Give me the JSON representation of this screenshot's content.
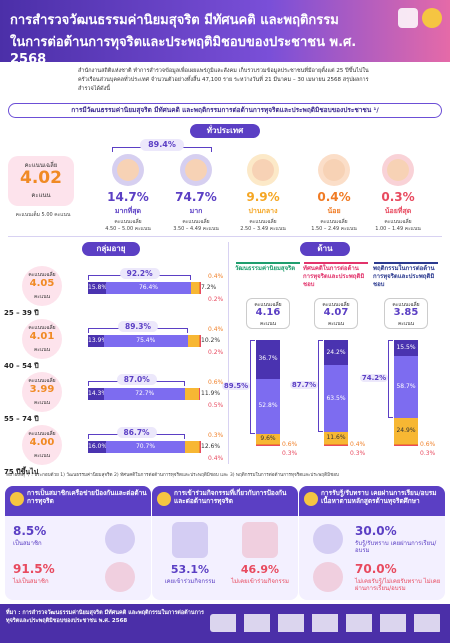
{
  "header": {
    "title_line1": "การสำรวจวัฒนธรรมค่านิยมสุจริต มีทัศนคติ และพฤติกรรม",
    "title_line2": "ในการต่อต้านการทุจริตและประพฤติมิชอบของประชาชน พ.ศ. 2568"
  },
  "intro": "สำนักงานสถิติแห่งชาติ ทำการสำรวจข้อมูลเพื่อเผยแพร่ภูมิและสังคม เก็บรวบรวมข้อมูลประชาชนที่มีอายุตั้งแต่ 25 ปีขึ้นไปในครัวเรือนส่วนบุคคลทั่วประเทศ จำนวนตัวอย่างทั้งสิ้น 47,100 ราย ระหว่างวันที่ 21 มีนาคม – 30 เมษายน 2568 สรุปผลการสำรวจได้ดังนี้",
  "section_title": "การมีวัฒนธรรมค่านิยมสุจริต มีทัศนคติ และพฤติกรรมการต่อต้านการทุจริตและประพฤติมิชอบของประชาชน ¹/",
  "national": {
    "label": "ทั่วประเทศ",
    "score_label": "คะแนนเฉลี่ย",
    "score": "4.02",
    "score_unit": "คะแนน",
    "full_score": "คะแนนเต็ม 5.00 คะแนน",
    "combined": "89.4%",
    "levels": [
      {
        "percent": "14.7%",
        "name": "มากที่สุด",
        "range_label": "คะแนนเฉลี่ย",
        "range": "4.50 – 5.00 คะแนน"
      },
      {
        "percent": "74.7%",
        "name": "มาก",
        "range_label": "คะแนนเฉลี่ย",
        "range": "3.50 – 4.49 คะแนน"
      },
      {
        "percent": "9.9%",
        "name": "ปานกลาง",
        "range_label": "คะแนนเฉลี่ย",
        "range": "2.50 – 3.49 คะแนน"
      },
      {
        "percent": "0.4%",
        "name": "น้อย",
        "range_label": "คะแนนเฉลี่ย",
        "range": "1.50 – 2.49 คะแนน"
      },
      {
        "percent": "0.3%",
        "name": "น้อยที่สุด",
        "range_label": "คะแนนเฉลี่ย",
        "range": "1.00 – 1.49 คะแนน"
      }
    ]
  },
  "age": {
    "label": "กลุ่มอายุ",
    "groups": [
      {
        "name": "25 – 39 ปี",
        "score_label": "คะแนนเฉลี่ย",
        "score": "4.05",
        "score_unit": "คะแนน",
        "combined": "92.2%",
        "segments": [
          {
            "value": 15.8,
            "label": "15.8%"
          },
          {
            "value": 76.4,
            "label": "76.4%"
          },
          {
            "value": 7.2,
            "label": "7.2%"
          },
          {
            "value": 0.4,
            "label": "0.4%"
          },
          {
            "value": 0.2,
            "label": "0.2%"
          }
        ]
      },
      {
        "name": "40 – 54 ปี",
        "score_label": "คะแนนเฉลี่ย",
        "score": "4.01",
        "score_unit": "คะแนน",
        "combined": "89.3%",
        "segments": [
          {
            "value": 13.9,
            "label": "13.9%"
          },
          {
            "value": 75.4,
            "label": "75.4%"
          },
          {
            "value": 10.2,
            "label": "10.2%"
          },
          {
            "value": 0.4,
            "label": "0.4%"
          },
          {
            "value": 0.2,
            "label": "0.2%"
          }
        ]
      },
      {
        "name": "55 – 74 ปี",
        "score_label": "คะแนนเฉลี่ย",
        "score": "3.99",
        "score_unit": "คะแนน",
        "combined": "87.0%",
        "segments": [
          {
            "value": 14.3,
            "label": "14.3%"
          },
          {
            "value": 72.7,
            "label": "72.7%"
          },
          {
            "value": 11.9,
            "label": "11.9%"
          },
          {
            "value": 0.6,
            "label": "0.6%"
          },
          {
            "value": 0.5,
            "label": "0.5%"
          }
        ]
      },
      {
        "name": "75 ปีขึ้นไป",
        "score_label": "คะแนนเฉลี่ย",
        "score": "4.00",
        "score_unit": "คะแนน",
        "combined": "86.7%",
        "segments": [
          {
            "value": 16.0,
            "label": "16.0%"
          },
          {
            "value": 70.7,
            "label": "70.7%"
          },
          {
            "value": 12.6,
            "label": "12.6%"
          },
          {
            "value": 0.3,
            "label": "0.3%"
          },
          {
            "value": 0.4,
            "label": "0.4%"
          }
        ]
      }
    ]
  },
  "dimension": {
    "label": "ด้าน",
    "columns": [
      {
        "name": "วัฒนธรรมค่านิยมสุจริต",
        "score_label": "คะแนนเฉลี่ย",
        "score": "4.16",
        "score_unit": "คะแนน",
        "combined": "89.5%",
        "segments": [
          {
            "value": 36.7,
            "label": "36.7%"
          },
          {
            "value": 52.8,
            "label": "52.8%"
          },
          {
            "value": 9.6,
            "label": "9.6%"
          },
          {
            "value": 0.6,
            "label": "0.6%"
          },
          {
            "value": 0.3,
            "label": "0.3%"
          }
        ]
      },
      {
        "name": "ทัศนคติในการต่อต้านการทุจริตและประพฤติมิชอบ",
        "score_label": "คะแนนเฉลี่ย",
        "score": "4.07",
        "score_unit": "คะแนน",
        "combined": "87.7%",
        "segments": [
          {
            "value": 24.2,
            "label": "24.2%"
          },
          {
            "value": 63.5,
            "label": "63.5%"
          },
          {
            "value": 11.6,
            "label": "11.6%"
          },
          {
            "value": 0.4,
            "label": "0.4%"
          },
          {
            "value": 0.3,
            "label": "0.3%"
          }
        ]
      },
      {
        "name": "พฤติกรรมในการต่อต้านการทุจริตและประพฤติมิชอบ",
        "score_label": "คะแนนเฉลี่ย",
        "score": "3.85",
        "score_unit": "คะแนน",
        "combined": "74.2%",
        "segments": [
          {
            "value": 15.5,
            "label": "15.5%"
          },
          {
            "value": 58.7,
            "label": "58.7%"
          },
          {
            "value": 24.9,
            "label": "24.9%"
          },
          {
            "value": 0.6,
            "label": "0.6%"
          },
          {
            "value": 0.3,
            "label": "0.3%"
          }
        ]
      }
    ]
  },
  "note": "หมายเหตุ ¹/ : ประกอบด้วย 1) วัฒนธรรมค่านิยมสุจริต 2) ทัศนคติในการต่อต้านการทุจริตและประพฤติมิชอบ และ 3) พฤติกรรมในการต่อต้านการทุจริตและประพฤติมิชอบ",
  "panels": [
    {
      "title": "การเป็นสมาชิกเครือข่ายป้องกันและต่อต้านการทุจริต",
      "items": [
        {
          "percent": "8.5%",
          "label": "เป็นสมาชิก"
        },
        {
          "percent": "91.5%",
          "label": "ไม่เป็นสมาชิก"
        }
      ]
    },
    {
      "title": "การเข้าร่วมกิจกรรมที่เกี่ยวกับการป้องกันและต่อต้านการทุจริต",
      "items": [
        {
          "percent": "53.1%",
          "label": "เคยเข้าร่วมกิจกรรม"
        },
        {
          "percent": "46.9%",
          "label": "ไม่เคยเข้าร่วมกิจกรรม"
        }
      ]
    },
    {
      "title": "การรับรู้/รับทราบ เคยผ่านการเรียน/อบรมเนื้อหาตามหลักสูตรต้านทุจริตศึกษา",
      "items": [
        {
          "percent": "30.0%",
          "label": "รับรู้/รับทราบ เคยผ่านการเรียน/อบรม"
        },
        {
          "percent": "70.0%",
          "label": "ไม่เคยรับรู้/ไม่เคยรับทราบ ไม่เคยผ่านการเรียน/อบรม"
        }
      ]
    }
  ],
  "footer": {
    "source": "ที่มา : การสำรวจวัฒนธรรมค่านิยมสุจริต มีทัศนคติ และพฤติกรรมในการต่อต้านการทุจริตและประพฤติมิชอบของประชาชน พ.ศ. 2568"
  }
}
